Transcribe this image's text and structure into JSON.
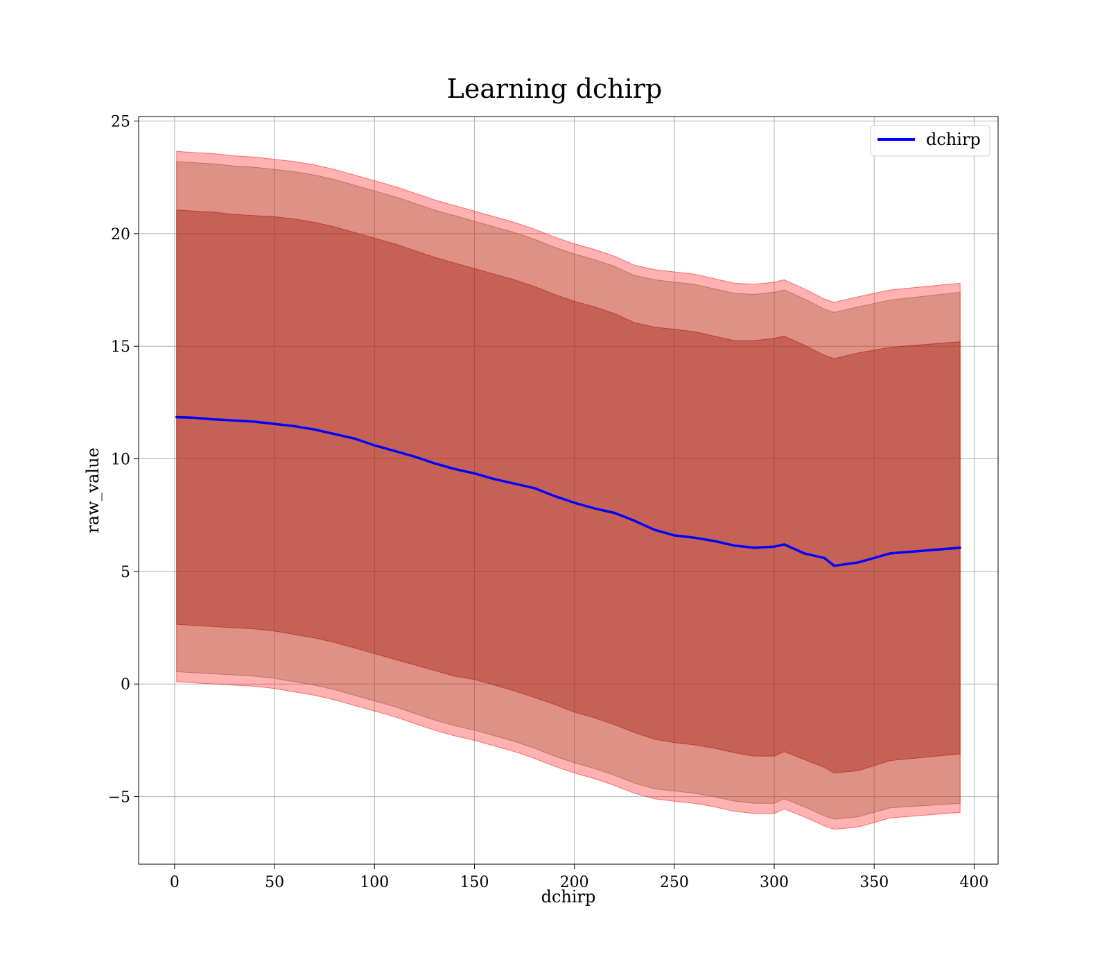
{
  "chart_data": {
    "type": "area",
    "title": "Learning dchirp",
    "xlabel": "dchirp",
    "ylabel": "raw_value",
    "xlim": [
      -18,
      412
    ],
    "ylim": [
      -8,
      25.2
    ],
    "x_ticks": [
      0,
      50,
      100,
      150,
      200,
      250,
      300,
      350,
      400
    ],
    "y_ticks": [
      -5,
      0,
      5,
      10,
      15,
      20,
      25
    ],
    "x_tick_labels": [
      "0",
      "50",
      "100",
      "150",
      "200",
      "250",
      "300",
      "350",
      "400"
    ],
    "y_tick_labels": [
      "−5",
      "0",
      "5",
      "10",
      "15",
      "20",
      "25"
    ],
    "grid": true,
    "legend": {
      "placement": "top-right",
      "entries": [
        {
          "label": "dchirp",
          "color": "#0000ff"
        }
      ]
    },
    "x": [
      1,
      10,
      20,
      30,
      40,
      50,
      60,
      70,
      80,
      90,
      100,
      110,
      120,
      130,
      140,
      150,
      160,
      170,
      180,
      190,
      200,
      210,
      220,
      230,
      240,
      250,
      260,
      270,
      280,
      290,
      300,
      305,
      315,
      325,
      330,
      342,
      358,
      393
    ],
    "series": [
      {
        "name": "dchirp",
        "role": "mean",
        "color": "#0000ff",
        "values": [
          11.85,
          11.82,
          11.75,
          11.7,
          11.65,
          11.55,
          11.45,
          11.3,
          11.1,
          10.9,
          10.6,
          10.35,
          10.1,
          9.8,
          9.55,
          9.35,
          9.1,
          8.9,
          8.7,
          8.35,
          8.05,
          7.8,
          7.6,
          7.25,
          6.85,
          6.6,
          6.5,
          6.35,
          6.15,
          6.05,
          6.1,
          6.2,
          5.8,
          5.6,
          5.25,
          5.4,
          5.8,
          6.05
        ]
      },
      {
        "name": "inner band",
        "role": "band",
        "color": "#800000",
        "opacity": 0.4,
        "upper": [
          21.05,
          21.0,
          20.95,
          20.85,
          20.8,
          20.75,
          20.65,
          20.5,
          20.3,
          20.05,
          19.8,
          19.55,
          19.25,
          18.95,
          18.7,
          18.45,
          18.2,
          17.95,
          17.65,
          17.3,
          17.0,
          16.75,
          16.45,
          16.05,
          15.85,
          15.75,
          15.65,
          15.45,
          15.25,
          15.25,
          15.35,
          15.45,
          15.05,
          14.6,
          14.45,
          14.7,
          14.95,
          15.2
        ],
        "lower": [
          2.65,
          2.6,
          2.55,
          2.5,
          2.45,
          2.35,
          2.2,
          2.05,
          1.85,
          1.6,
          1.35,
          1.1,
          0.85,
          0.6,
          0.35,
          0.2,
          -0.05,
          -0.3,
          -0.6,
          -0.9,
          -1.25,
          -1.5,
          -1.8,
          -2.15,
          -2.45,
          -2.6,
          -2.7,
          -2.85,
          -3.05,
          -3.2,
          -3.2,
          -3.0,
          -3.35,
          -3.7,
          -3.95,
          -3.85,
          -3.4,
          -3.1
        ]
      },
      {
        "name": "outer band",
        "role": "band",
        "color": "#ff0000",
        "opacity": 0.3,
        "upper": [
          23.65,
          23.6,
          23.55,
          23.45,
          23.4,
          23.3,
          23.2,
          23.05,
          22.85,
          22.6,
          22.35,
          22.1,
          21.8,
          21.5,
          21.25,
          21.0,
          20.75,
          20.5,
          20.2,
          19.85,
          19.55,
          19.3,
          19.0,
          18.6,
          18.4,
          18.3,
          18.2,
          18.0,
          17.8,
          17.75,
          17.85,
          17.95,
          17.55,
          17.1,
          16.95,
          17.2,
          17.5,
          17.8
        ],
        "lower": [
          0.1,
          0.05,
          0.0,
          -0.05,
          -0.1,
          -0.2,
          -0.35,
          -0.5,
          -0.7,
          -0.95,
          -1.2,
          -1.45,
          -1.75,
          -2.05,
          -2.3,
          -2.5,
          -2.75,
          -3.0,
          -3.3,
          -3.65,
          -3.95,
          -4.2,
          -4.5,
          -4.85,
          -5.1,
          -5.2,
          -5.3,
          -5.45,
          -5.65,
          -5.75,
          -5.75,
          -5.55,
          -5.9,
          -6.3,
          -6.45,
          -6.35,
          -5.95,
          -5.7
        ]
      },
      {
        "name": "middle band",
        "role": "band",
        "color": "#a0522d",
        "opacity": 0.35,
        "upper": [
          23.2,
          23.15,
          23.1,
          23.0,
          22.95,
          22.85,
          22.75,
          22.6,
          22.4,
          22.15,
          21.9,
          21.65,
          21.35,
          21.05,
          20.8,
          20.55,
          20.3,
          20.05,
          19.75,
          19.4,
          19.1,
          18.85,
          18.55,
          18.15,
          17.95,
          17.85,
          17.75,
          17.55,
          17.35,
          17.3,
          17.4,
          17.5,
          17.1,
          16.65,
          16.5,
          16.75,
          17.05,
          17.4
        ],
        "lower": [
          0.55,
          0.5,
          0.45,
          0.4,
          0.35,
          0.25,
          0.1,
          -0.05,
          -0.25,
          -0.5,
          -0.75,
          -1.0,
          -1.3,
          -1.6,
          -1.85,
          -2.05,
          -2.3,
          -2.55,
          -2.85,
          -3.2,
          -3.5,
          -3.75,
          -4.05,
          -4.4,
          -4.65,
          -4.75,
          -4.85,
          -5.0,
          -5.2,
          -5.3,
          -5.3,
          -5.1,
          -5.45,
          -5.85,
          -6.0,
          -5.9,
          -5.5,
          -5.3
        ]
      }
    ]
  }
}
